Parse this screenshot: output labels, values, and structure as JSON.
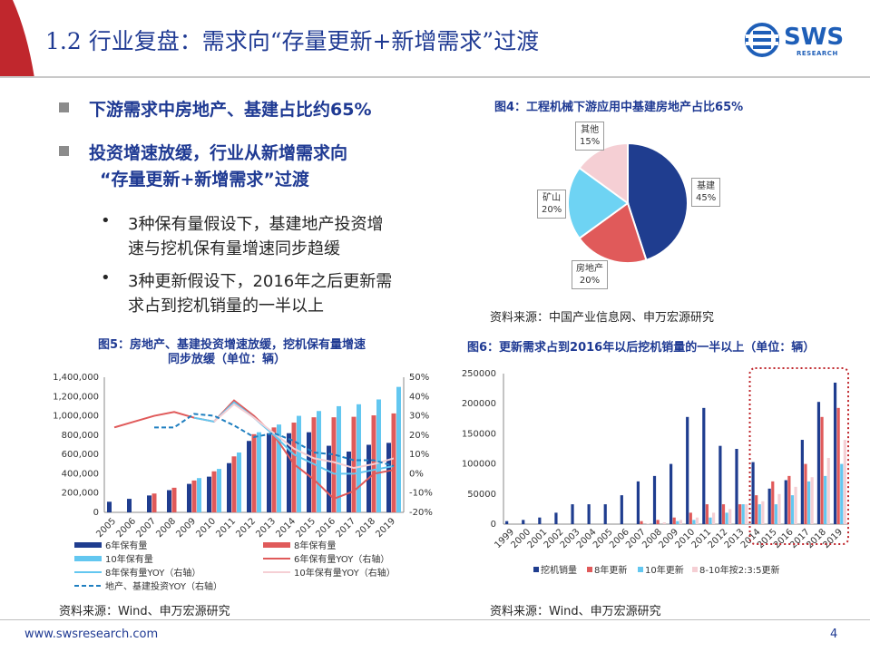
{
  "slide": {
    "title": "1.2 行业复盘：需求向“存量更新+新增需求”过渡",
    "logo_text": "SWS",
    "logo_sub": "RESEARCH",
    "footer": "www.swsresearch.com",
    "page_number": "4"
  },
  "bullets": {
    "b1": "下游需求中房地产、基建占比约65%",
    "b2_line1": "投资增速放缓，行业从新增需求向",
    "b2_line2": "“存量更新+新增需求”过渡",
    "s1_line1": "3种保有量假设下，基建地产投资增",
    "s1_line2": "速与挖机保有量增速同步趋缓",
    "s2_line1": "3种更新假设下，2016年之后更新需",
    "s2_line2": "求占到挖机销量的一半以上",
    "dot": "•"
  },
  "fig4": {
    "caption": "图4：工程机械下游应用中基建房地产占比65%",
    "source": "资料来源：中国产业信息网、申万宏源研究"
  },
  "fig5": {
    "caption_line1": "图5：房地产、基建投资增速放缓，挖机保有量增速",
    "caption_line2": "同步放缓（单位：辆）",
    "source": "资料来源：Wind、申万宏源研究"
  },
  "fig6": {
    "caption": "图6：更新需求占到2016年以后挖机销量的一半以上（单位：辆）",
    "source": "资料来源：Wind、申万宏源研究"
  },
  "colors": {
    "navy": "#1f3a93",
    "pie_navy": "#1f3d8f",
    "pie_red": "#e05a5a",
    "pie_cyan": "#6ed3f3",
    "pie_pink": "#f5cfd4",
    "light_blue": "#63c7f0",
    "highlight": "#c0272d"
  },
  "chart_data": [
    {
      "type": "pie",
      "labels": [
        "基建",
        "房地产",
        "矿山",
        "其他"
      ],
      "values": [
        45,
        20,
        20,
        15
      ],
      "value_labels": [
        "45%",
        "20%",
        "20%",
        "15%"
      ],
      "colors": [
        "#1f3d8f",
        "#e05a5a",
        "#6ed3f3",
        "#f5cfd4"
      ]
    },
    {
      "type": "bar",
      "categories": [
        "2005",
        "2006",
        "2007",
        "2008",
        "2009",
        "2010",
        "2011",
        "2012",
        "2013",
        "2014",
        "2015",
        "2016",
        "2017",
        "2018",
        "2019"
      ],
      "y_ticks": [
        "0",
        "200,000",
        "400,000",
        "600,000",
        "800,000",
        "1,000,000",
        "1,200,000",
        "1,400,000"
      ],
      "y2_ticks": [
        "-20%",
        "-10%",
        "0%",
        "10%",
        "20%",
        "30%",
        "40%",
        "50%"
      ],
      "ylim": [
        0,
        1400000
      ],
      "y2lim": [
        -20,
        50
      ],
      "bar_series": [
        {
          "name": "6年保有量",
          "color": "#1f3d8f",
          "values": [
            110000,
            140000,
            175000,
            230000,
            295000,
            370000,
            510000,
            740000,
            820000,
            820000,
            830000,
            690000,
            630000,
            700000,
            720000
          ]
        },
        {
          "name": "8年保有量",
          "color": "#e05a5a",
          "values": [
            null,
            null,
            195000,
            255000,
            330000,
            425000,
            580000,
            810000,
            880000,
            930000,
            985000,
            985000,
            990000,
            1005000,
            1025000
          ]
        },
        {
          "name": "10年保有量",
          "color": "#63c7f0",
          "values": [
            null,
            null,
            null,
            null,
            355000,
            450000,
            620000,
            830000,
            910000,
            1000000,
            1050000,
            1100000,
            1120000,
            1170000,
            1300000
          ]
        }
      ],
      "line_series": [
        {
          "name": "6年保有量YOY（右轴）",
          "color": "#e05a5a",
          "values": [
            24,
            27,
            30,
            32,
            29,
            27,
            38,
            30,
            20,
            5,
            -3,
            -13,
            -9,
            0,
            2
          ]
        },
        {
          "name": "8年保有量YOY（右轴）",
          "color": "#63c7f0",
          "values": [
            null,
            null,
            null,
            null,
            29,
            27,
            37,
            29,
            20,
            10,
            5,
            0,
            0,
            2,
            4
          ]
        },
        {
          "name": "10年保有量YOY（右轴）",
          "color": "#f5cfd4",
          "values": [
            null,
            null,
            null,
            null,
            null,
            27,
            36,
            29,
            21,
            13,
            8,
            6,
            3,
            5,
            8
          ]
        },
        {
          "name": "地产、基建投资YOY（右轴）",
          "color": "#1f7fc0",
          "dashed": true,
          "values": [
            null,
            null,
            24,
            24,
            31,
            30,
            25,
            19,
            21,
            17,
            11,
            10,
            7,
            7,
            4
          ]
        }
      ],
      "legend": [
        "6年保有量",
        "8年保有量",
        "10年保有量",
        "6年保有量YOY（右轴）",
        "8年保有量YOY（右轴）",
        "10年保有量YOY（右轴）",
        "地产、基建投资YOY（右轴）"
      ]
    },
    {
      "type": "bar",
      "categories": [
        "1999",
        "2000",
        "2001",
        "2002",
        "2003",
        "2004",
        "2005",
        "2006",
        "2007",
        "2008",
        "2009",
        "2010",
        "2011",
        "2012",
        "2013",
        "2014",
        "2015",
        "2016",
        "2017",
        "2018",
        "2019"
      ],
      "y_ticks": [
        "0",
        "50000",
        "100000",
        "150000",
        "200000",
        "250000"
      ],
      "ylim": [
        0,
        250000
      ],
      "series": [
        {
          "name": "挖机销量",
          "color": "#1f3d8f",
          "values": [
            5000,
            7000,
            11000,
            19000,
            33000,
            33000,
            33000,
            48000,
            71000,
            80000,
            100000,
            178000,
            193000,
            130000,
            125000,
            103000,
            59000,
            73000,
            140000,
            203000,
            235000
          ]
        },
        {
          "name": "8年更新",
          "color": "#e05a5a",
          "values": [
            0,
            0,
            0,
            0,
            0,
            0,
            0,
            0,
            5000,
            7000,
            11000,
            19000,
            33000,
            33000,
            33000,
            48000,
            71000,
            80000,
            100000,
            178000,
            193000
          ]
        },
        {
          "name": "10年更新",
          "color": "#63c7f0",
          "values": [
            0,
            0,
            0,
            0,
            0,
            0,
            0,
            0,
            0,
            0,
            5000,
            7000,
            11000,
            19000,
            33000,
            33000,
            33000,
            48000,
            71000,
            80000,
            100000
          ]
        },
        {
          "name": "8-10年按2:3:5更新",
          "color": "#f5cfd4",
          "values": [
            0,
            0,
            0,
            0,
            0,
            0,
            0,
            0,
            1000,
            3000,
            7000,
            11000,
            19000,
            25000,
            33000,
            38000,
            50000,
            62000,
            78000,
            110000,
            140000
          ]
        }
      ],
      "legend": [
        "挖机销量",
        "8年更新",
        "10年更新",
        "8-10年按2:3:5更新"
      ]
    }
  ]
}
